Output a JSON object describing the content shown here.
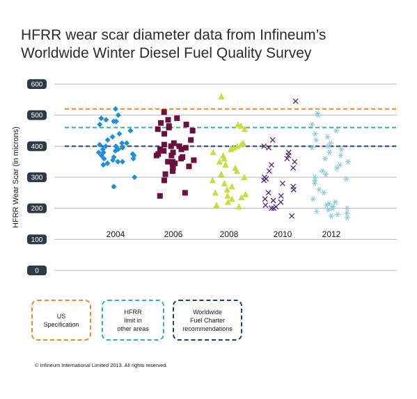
{
  "title_lines": [
    "HFRR wear scar diameter data from Infineum’s",
    "Worldwide Winter Diesel Fuel Quality Survey"
  ],
  "copyright": "© Infineum International Limited 2013. All rights reserved.",
  "legend": [
    {
      "label": "US\nSpecification",
      "color": "#f08a21"
    },
    {
      "label": "HFRR\nlimit in\nother areas",
      "color": "#2bb5a0"
    },
    {
      "label": "Worldwide\nFuel Charter\nrecommendations",
      "color": "#1d3f7a"
    }
  ],
  "chart_data": {
    "type": "scatter",
    "title": "HFRR wear scar diameter data from Infineum’s Worldwide Winter Diesel Fuel Quality Survey",
    "xlabel": "",
    "ylabel": "HFRR Wear Scar (in microns)",
    "ylim": [
      0,
      600
    ],
    "yticks": [
      0,
      100,
      200,
      300,
      400,
      500,
      600
    ],
    "grid": true,
    "reference_lines": [
      {
        "name": "US Specification",
        "value": 520,
        "color": "#f08a21"
      },
      {
        "name": "HFRR limit in other areas",
        "value": 460,
        "color": "#2bb5a0"
      },
      {
        "name": "Worldwide Fuel Charter recommendations",
        "value": 400,
        "color": "#1d3f7a"
      }
    ],
    "series": [
      {
        "category": "2004",
        "marker": "diamond",
        "color": "#1a8fdc",
        "values": [
          520,
          500,
          490,
          485,
          480,
          480,
          470,
          450,
          440,
          430,
          420,
          410,
          410,
          405,
          400,
          400,
          395,
          390,
          390,
          385,
          380,
          380,
          375,
          370,
          370,
          365,
          360,
          360,
          355,
          350,
          350,
          345,
          340,
          300,
          270
        ]
      },
      {
        "category": "2006",
        "marker": "square",
        "color": "#6b0f3f",
        "values": [
          510,
          490,
          485,
          475,
          470,
          465,
          460,
          455,
          450,
          440,
          420,
          410,
          405,
          400,
          400,
          395,
          390,
          390,
          385,
          380,
          375,
          370,
          370,
          365,
          360,
          355,
          350,
          350,
          345,
          340,
          335,
          330,
          320,
          310,
          290,
          250,
          240
        ]
      },
      {
        "category": "2008",
        "marker": "triangle",
        "color": "#c8dd3e",
        "values": [
          560,
          470,
          465,
          455,
          410,
          405,
          400,
          395,
          390,
          380,
          370,
          360,
          350,
          340,
          330,
          320,
          310,
          300,
          290,
          280,
          270,
          260,
          250,
          245,
          240,
          235,
          230,
          220,
          210,
          205
        ]
      },
      {
        "category": "2010",
        "marker": "x",
        "color": "#4a2a7a",
        "values": [
          545,
          420,
          400,
          395,
          380,
          370,
          360,
          350,
          340,
          330,
          320,
          300,
          295,
          290,
          280,
          270,
          260,
          250,
          240,
          230,
          225,
          220,
          210,
          205,
          200,
          200,
          175
        ]
      },
      {
        "category": "2012",
        "marker": "asterisk",
        "color": "#86c9df",
        "values": [
          505,
          500,
          470,
          450,
          440,
          430,
          420,
          410,
          400,
          395,
          390,
          380,
          370,
          360,
          350,
          340,
          330,
          320,
          310,
          300,
          295,
          290,
          280,
          260,
          250,
          230,
          220,
          215,
          210,
          205,
          200,
          200,
          195,
          190,
          185,
          180,
          175,
          170
        ]
      }
    ]
  }
}
